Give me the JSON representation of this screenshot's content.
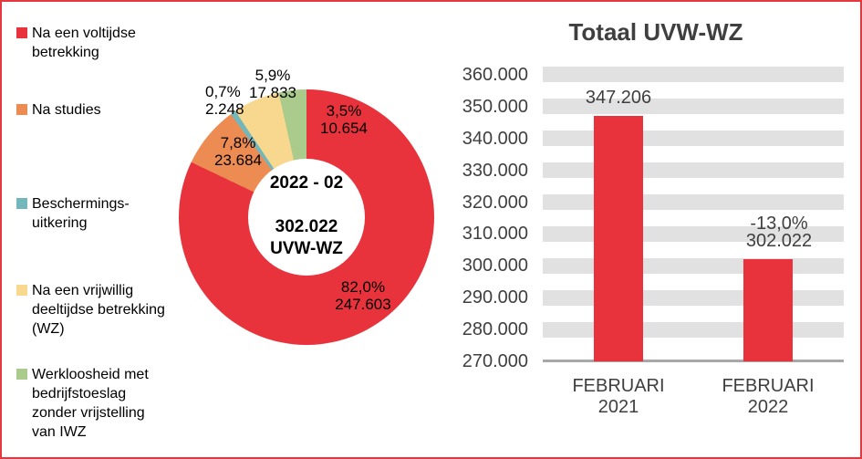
{
  "colors": {
    "red": "#E8333C",
    "orange": "#ED8C52",
    "teal": "#73B7BA",
    "yellow": "#F8D78F",
    "green": "#AACB8C",
    "band_gray": "#E1E1E1",
    "axis_gray": "#A8A8A8",
    "dark_text": "#3F3F3F",
    "border_red": "#E3383E"
  },
  "legend": {
    "items": [
      {
        "label": "Na een voltijdse\nbetrekking",
        "color": "#E8333C"
      },
      {
        "label": "Na studies",
        "color": "#ED8C52"
      },
      {
        "label": "Beschermings-\nuitkering",
        "color": "#73B7BA"
      },
      {
        "label": "Na een vrijwillig\ndeeltijdse betrekking\n(WZ)",
        "color": "#F8D78F"
      },
      {
        "label": "Werkloosheid met\nbedrijfstoeslag\nzonder vrijstelling\nvan IWZ",
        "color": "#AACB8C"
      }
    ]
  },
  "donut": {
    "center": {
      "period": "2022 - 02",
      "total": "302.022",
      "unit": "UVW-WZ"
    },
    "slices": [
      {
        "name": "Na een voltijdse betrekking",
        "pct": 82.0,
        "pct_label": "82,0%",
        "value": "247.603",
        "color": "#E8333C"
      },
      {
        "name": "Na studies",
        "pct": 7.8,
        "pct_label": "7,8%",
        "value": "23.684",
        "color": "#ED8C52"
      },
      {
        "name": "Beschermingsuitkering",
        "pct": 0.7,
        "pct_label": "0,7%",
        "value": "2.248",
        "color": "#73B7BA"
      },
      {
        "name": "Na een vrijwillig deeltijdse betrekking (WZ)",
        "pct": 5.9,
        "pct_label": "5,9%",
        "value": "17.833",
        "color": "#F8D78F"
      },
      {
        "name": "Werkloosheid met bedrijfstoeslag zonder vrijstelling van IWZ",
        "pct": 3.5,
        "pct_label": "3,5%",
        "value": "10.654",
        "color": "#AACB8C"
      }
    ]
  },
  "bar_chart": {
    "title": "Totaal UVW-WZ",
    "y_ticks": [
      "360.000",
      "350.000",
      "340.000",
      "330.000",
      "320.000",
      "310.000",
      "300.000",
      "290.000",
      "280.000",
      "270.000"
    ],
    "bars": [
      {
        "category": "FEBRUARI\n2021",
        "value": 347206,
        "label": "347.206"
      },
      {
        "category": "FEBRUARI\n2022",
        "value": 302022,
        "label": "302.022",
        "delta_label": "-13,0%"
      }
    ]
  },
  "chart_data": [
    {
      "type": "pie",
      "donut": true,
      "center_text": [
        "2022 - 02",
        "302.022",
        "UVW-WZ"
      ],
      "labels": [
        "Na een voltijdse betrekking",
        "Na studies",
        "Beschermingsuitkering",
        "Na een vrijwillig deeltijdse betrekking (WZ)",
        "Werkloosheid met bedrijfstoeslag zonder vrijstelling van IWZ"
      ],
      "values": [
        247603,
        23684,
        2248,
        17833,
        10654
      ],
      "percentages": [
        82.0,
        7.8,
        0.7,
        5.9,
        3.5
      ],
      "total": 302022,
      "legend_position": "left",
      "start_angle_deg": 0,
      "direction": "clockwise"
    },
    {
      "type": "bar",
      "title": "Totaal UVW-WZ",
      "categories": [
        "FEBRUARI 2021",
        "FEBRUARI 2022"
      ],
      "values": [
        347206,
        302022
      ],
      "data_labels": [
        "347.206",
        "302.022"
      ],
      "annotation": "-13,0%",
      "ylim": [
        270000,
        360000
      ],
      "ytick_step": 10000,
      "grid": "thick-gray-bands",
      "bar_color": "#E8333C"
    }
  ]
}
